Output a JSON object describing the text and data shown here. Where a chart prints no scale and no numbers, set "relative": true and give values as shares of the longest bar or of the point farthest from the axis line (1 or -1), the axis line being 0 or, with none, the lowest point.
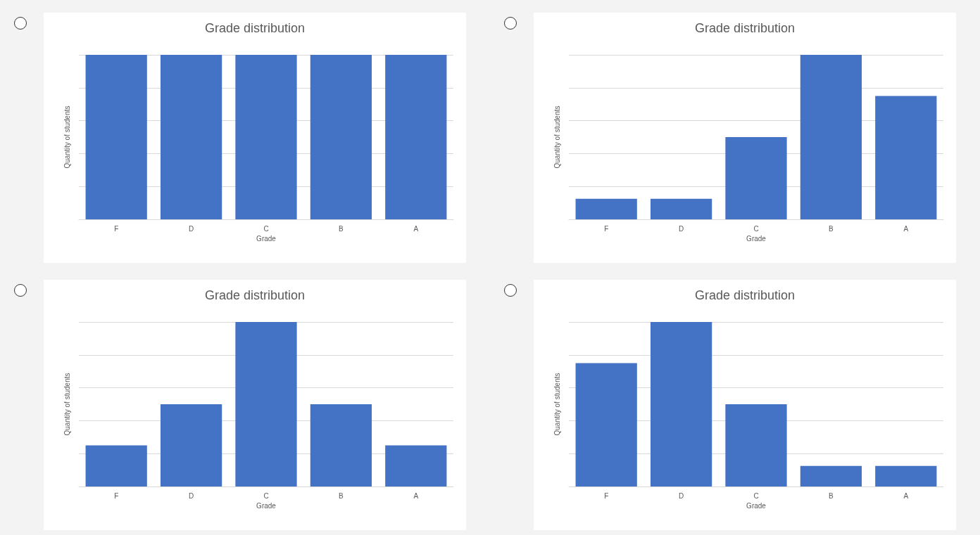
{
  "chart_data": [
    {
      "type": "bar",
      "title": "Grade distribution",
      "xlabel": "Grade",
      "ylabel": "Quantity of students",
      "categories": [
        "F",
        "D",
        "C",
        "B",
        "A"
      ],
      "values": [
        1,
        1,
        1,
        1,
        1
      ],
      "color": "#4472c4",
      "relative": true,
      "grid": "y"
    },
    {
      "type": "bar",
      "title": "Grade distribution",
      "xlabel": "Grade",
      "ylabel": "Quantity of students",
      "categories": [
        "F",
        "D",
        "C",
        "B",
        "A"
      ],
      "values": [
        0.125,
        0.125,
        0.5,
        1,
        0.75
      ],
      "color": "#4472c4",
      "relative": true,
      "grid": "y"
    },
    {
      "type": "bar",
      "title": "Grade distribution",
      "xlabel": "Grade",
      "ylabel": "Quantity of students",
      "categories": [
        "F",
        "D",
        "C",
        "B",
        "A"
      ],
      "values": [
        0.25,
        0.5,
        1,
        0.5,
        0.25
      ],
      "color": "#4472c4",
      "relative": true,
      "grid": "y"
    },
    {
      "type": "bar",
      "title": "Grade distribution",
      "xlabel": "Grade",
      "ylabel": "Quantity of students",
      "categories": [
        "F",
        "D",
        "C",
        "B",
        "A"
      ],
      "values": [
        0.75,
        1,
        0.5,
        0.125,
        0.125
      ],
      "color": "#4472c4",
      "relative": true,
      "grid": "y"
    }
  ]
}
